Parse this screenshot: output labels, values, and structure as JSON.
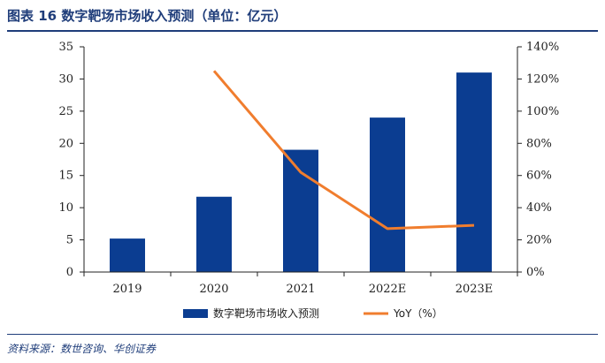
{
  "header": {
    "title": "图表 16  数字靶场市场收入预测（单位：亿元）"
  },
  "footer": {
    "source": "资料来源：数世咨询、华创证券"
  },
  "colors": {
    "bar": "#0b3d91",
    "line": "#f07d2e",
    "title": "#1f3d7a"
  },
  "chart_data": {
    "type": "bar",
    "categories": [
      "2019",
      "2020",
      "2021",
      "2022E",
      "2023E"
    ],
    "series": [
      {
        "name": "数字靶场市场收入预测",
        "type": "bar",
        "axis": "left",
        "values": [
          5.2,
          11.7,
          19.0,
          24.0,
          31.0
        ]
      },
      {
        "name": "YoY（%）",
        "type": "line",
        "axis": "right",
        "values": [
          null,
          125,
          62,
          27,
          29
        ]
      }
    ],
    "y_left": {
      "min": 0,
      "max": 35,
      "ticks": [
        "0",
        "5",
        "10",
        "15",
        "20",
        "25",
        "30",
        "35"
      ],
      "tick_values": [
        0,
        5,
        10,
        15,
        20,
        25,
        30,
        35
      ]
    },
    "y_right": {
      "min": 0,
      "max": 140,
      "ticks": [
        "0%",
        "20%",
        "40%",
        "60%",
        "80%",
        "100%",
        "120%",
        "140%"
      ],
      "tick_values": [
        0,
        20,
        40,
        60,
        80,
        100,
        120,
        140
      ]
    },
    "grid": false,
    "legend_position": "bottom"
  }
}
